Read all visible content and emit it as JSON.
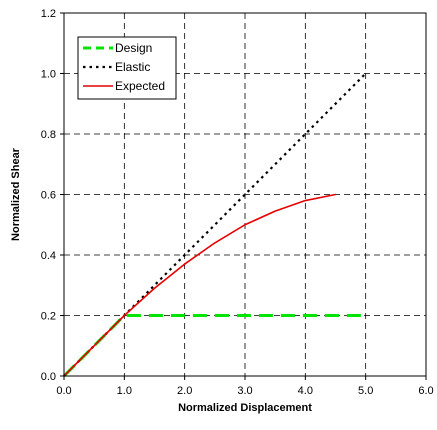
{
  "chart_data": {
    "type": "line",
    "xlabel": "Normalized Displacement",
    "ylabel": "Normalized Shear",
    "xlim": [
      0,
      6
    ],
    "ylim": [
      0,
      1.2
    ],
    "xticks": [
      0,
      1,
      2,
      3,
      4,
      5,
      6
    ],
    "xtick_labels": [
      "0.0",
      "1.0",
      "2.0",
      "3.0",
      "4.0",
      "5.0",
      "6.0"
    ],
    "yticks": [
      0,
      0.2,
      0.4,
      0.6,
      0.8,
      1.0,
      1.2
    ],
    "ytick_labels": [
      "0.0",
      "0.2",
      "0.4",
      "0.6",
      "0.8",
      "1.0",
      "1.2"
    ],
    "grid": true,
    "legend_position": "top-left",
    "series": [
      {
        "name": "Design",
        "style": "dashed",
        "color": "#00e600",
        "x": [
          0,
          1.0,
          5.0
        ],
        "y": [
          0,
          0.2,
          0.2
        ]
      },
      {
        "name": "Elastic",
        "style": "dotted",
        "color": "#000000",
        "x": [
          0,
          5.0
        ],
        "y": [
          0,
          1.0
        ]
      },
      {
        "name": "Expected",
        "style": "solid",
        "color": "#e60000",
        "x": [
          0,
          0.5,
          1.0,
          1.5,
          2.0,
          2.5,
          3.0,
          3.5,
          4.0,
          4.5
        ],
        "y": [
          0,
          0.1,
          0.2,
          0.29,
          0.37,
          0.44,
          0.5,
          0.545,
          0.58,
          0.6
        ]
      }
    ]
  }
}
